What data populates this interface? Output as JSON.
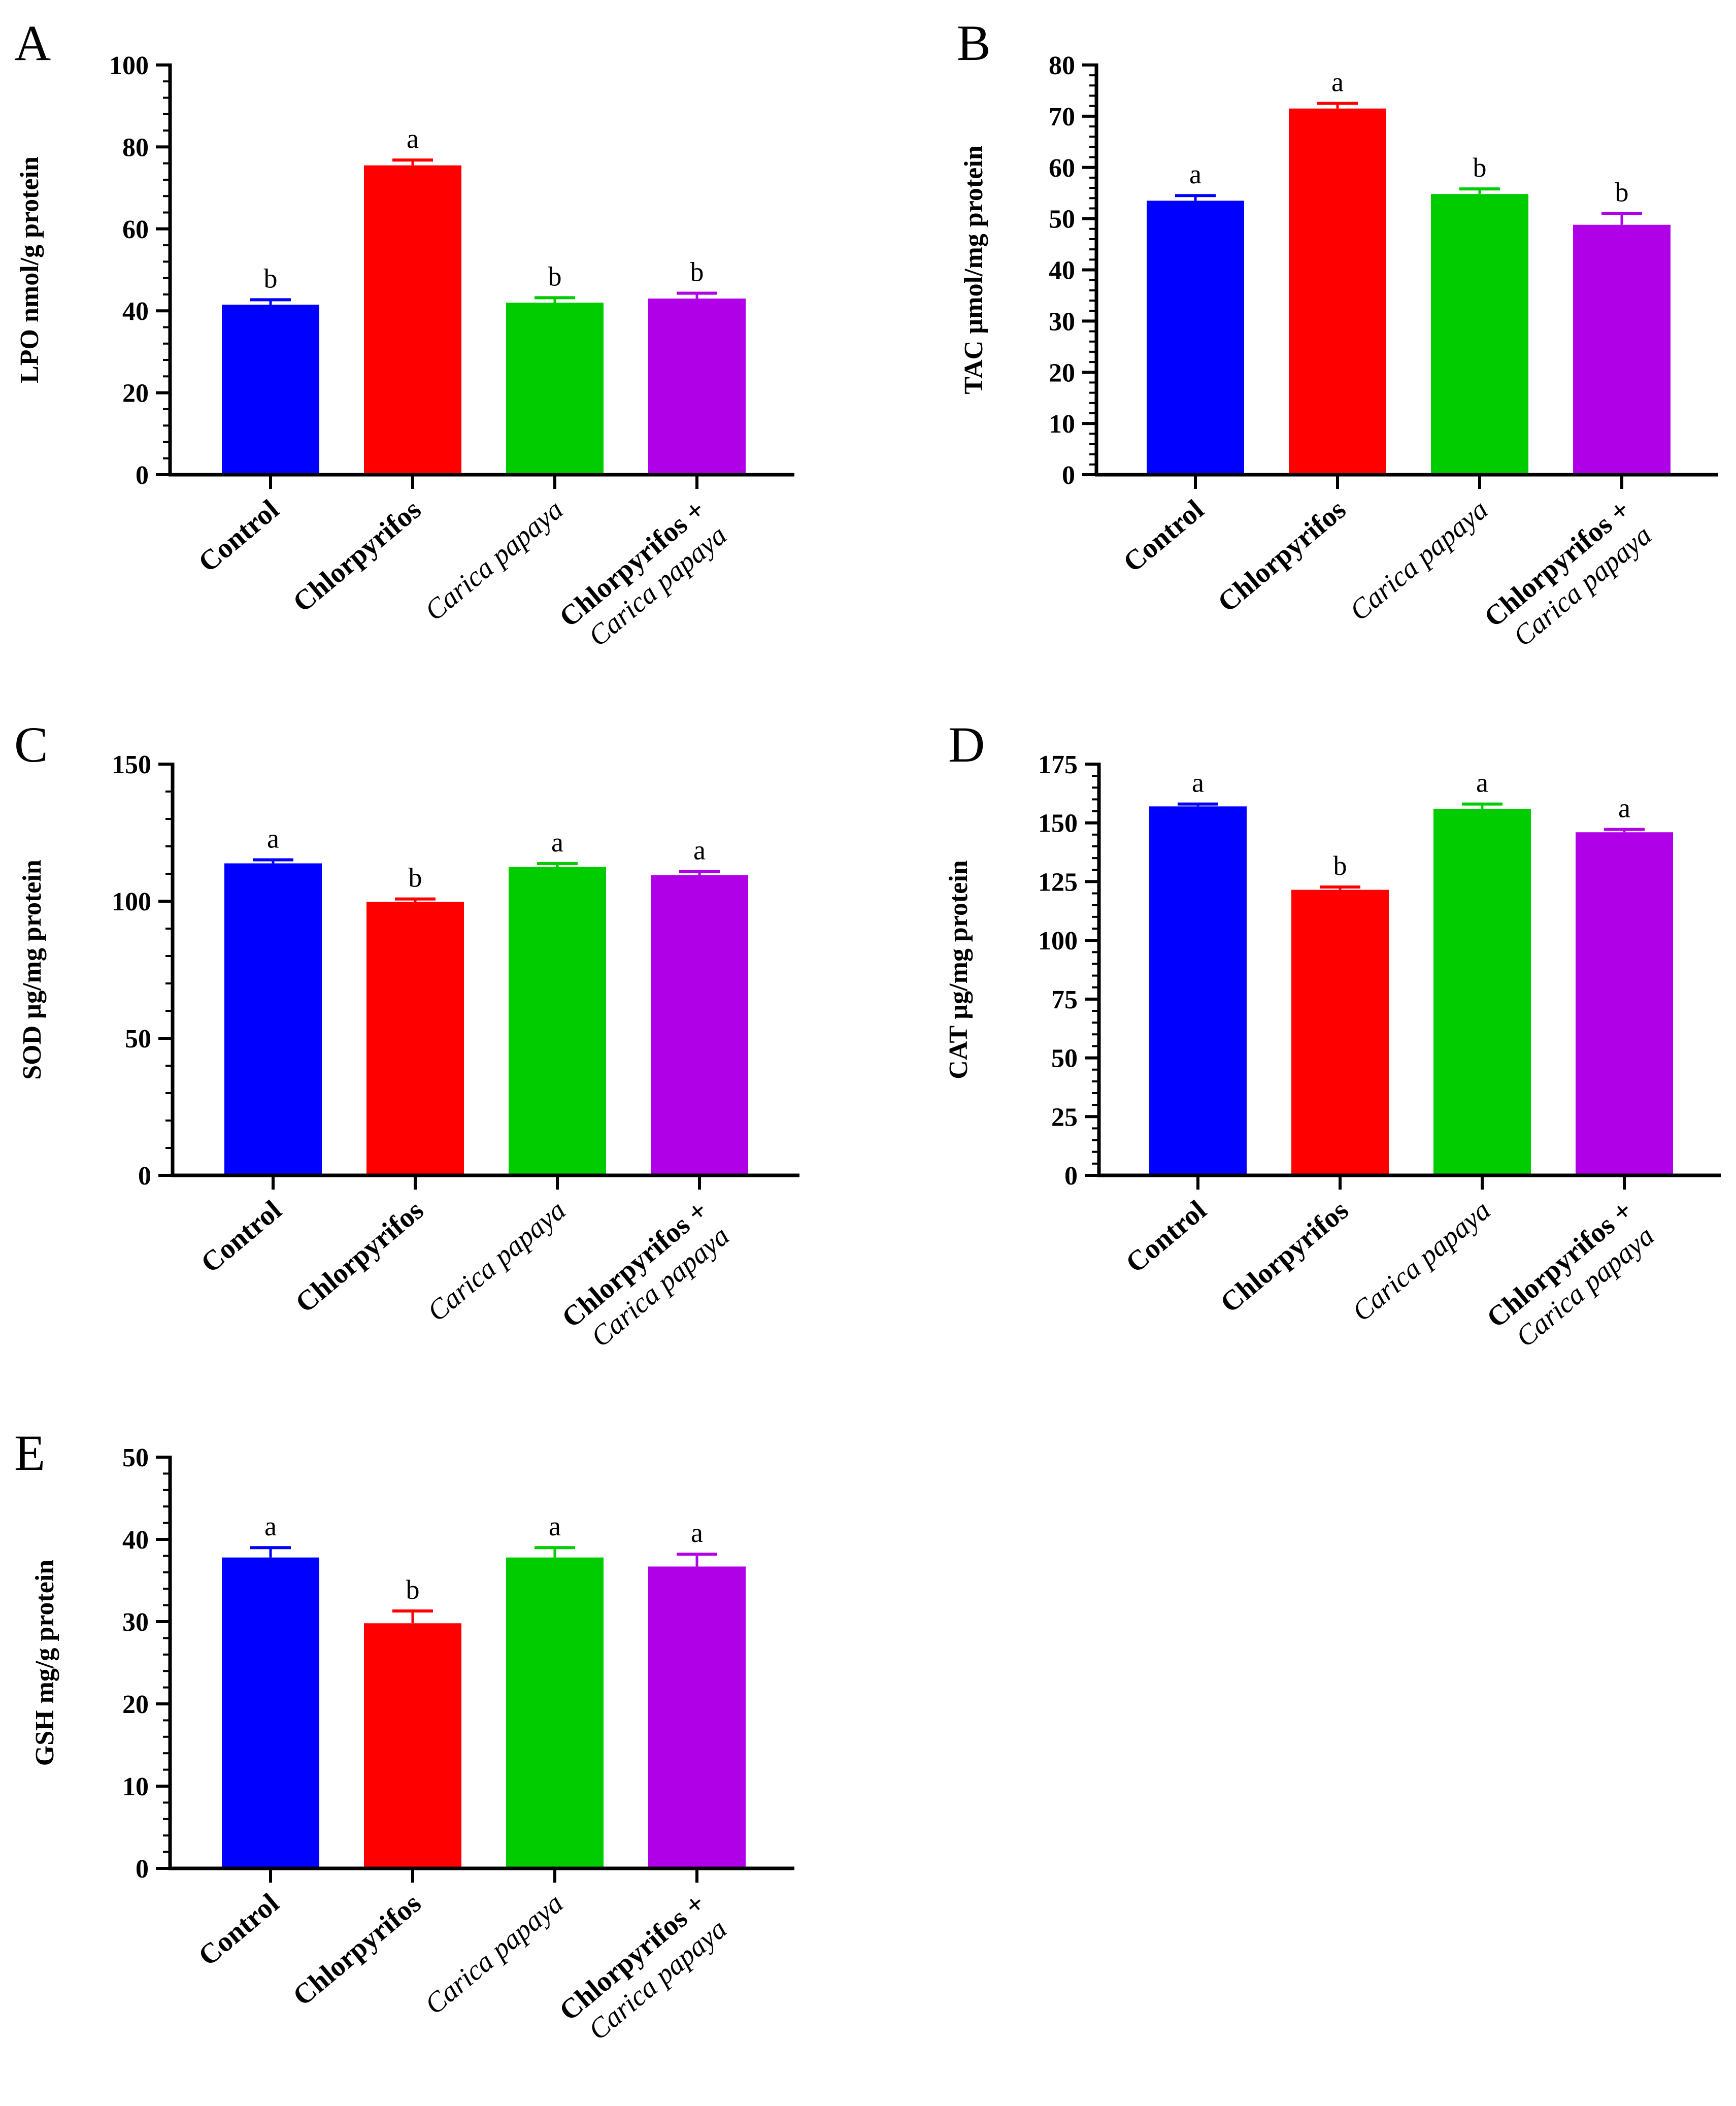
{
  "categories": [
    {
      "lines": [
        {
          "text": "Control",
          "style": "bold"
        }
      ]
    },
    {
      "lines": [
        {
          "text": "Chlorpyrifos",
          "style": "bold"
        }
      ]
    },
    {
      "lines": [
        {
          "text": "Carica papaya",
          "style": "italic"
        }
      ]
    },
    {
      "lines": [
        {
          "text": "Chlorpyrifos +",
          "style": "bold"
        },
        {
          "text": "Carica papaya",
          "style": "italic"
        }
      ]
    }
  ],
  "colors": [
    "#0000ff",
    "#ff0000",
    "#00cc00",
    "#b000e8"
  ],
  "chart_data": [
    {
      "panel": "A",
      "type": "bar",
      "ylabel": "LPO nmol/g protein",
      "ylim": [
        0,
        100
      ],
      "yticks": [
        0,
        20,
        40,
        60,
        80,
        100
      ],
      "categories": [
        "Control",
        "Chlorpyrifos",
        "Carica papaya",
        "Chlorpyrifos + Carica papaya"
      ],
      "values": [
        41.5,
        75.5,
        42,
        43
      ],
      "errors": [
        1.2,
        1.3,
        1.2,
        1.3
      ],
      "sig": [
        "b",
        "a",
        "b",
        "b"
      ]
    },
    {
      "panel": "B",
      "type": "bar",
      "ylabel": "TAC µmol/mg protein",
      "ylim": [
        0,
        80
      ],
      "yticks": [
        0,
        10,
        20,
        30,
        40,
        50,
        60,
        70,
        80
      ],
      "categories": [
        "Control",
        "Chlorpyrifos",
        "Carica papaya",
        "Chlorpyrifos + Carica papaya"
      ],
      "values": [
        53.5,
        71.5,
        54.8,
        48.8
      ],
      "errors": [
        1.0,
        1.0,
        1.0,
        2.2
      ],
      "sig": [
        "a",
        "a",
        "b",
        "b"
      ]
    },
    {
      "panel": "C",
      "type": "bar",
      "ylabel": "SOD µg/mg protein",
      "ylim": [
        0,
        150
      ],
      "yticks": [
        0,
        50,
        100,
        150
      ],
      "categories": [
        "Control",
        "Chlorpyrifos",
        "Carica papaya",
        "Chlorpyrifos + Carica papaya"
      ],
      "values": [
        113.8,
        99.8,
        112.5,
        109.5
      ],
      "errors": [
        1.3,
        1.0,
        1.2,
        1.3
      ],
      "sig": [
        "a",
        "b",
        "a",
        "a"
      ]
    },
    {
      "panel": "D",
      "type": "bar",
      "ylabel": "CAT µg/mg protein",
      "ylim": [
        0,
        175
      ],
      "yticks": [
        0,
        25,
        50,
        75,
        100,
        125,
        150,
        175
      ],
      "categories": [
        "Control",
        "Chlorpyrifos",
        "Carica papaya",
        "Chlorpyrifos + Carica papaya"
      ],
      "values": [
        157,
        121.5,
        156,
        146
      ],
      "errors": [
        1.0,
        1.2,
        2.0,
        1.2
      ],
      "sig": [
        "a",
        "b",
        "a",
        "a"
      ]
    },
    {
      "panel": "E",
      "type": "bar",
      "ylabel": "GSH mg/g protein",
      "ylim": [
        0,
        50
      ],
      "yticks": [
        0,
        10,
        20,
        30,
        40,
        50
      ],
      "categories": [
        "Control",
        "Chlorpyrifos",
        "Carica papaya",
        "Chlorpyrifos + Carica papaya"
      ],
      "values": [
        37.8,
        29.8,
        37.8,
        36.7
      ],
      "errors": [
        1.2,
        1.5,
        1.2,
        1.5
      ],
      "sig": [
        "a",
        "b",
        "a",
        "a"
      ]
    }
  ]
}
